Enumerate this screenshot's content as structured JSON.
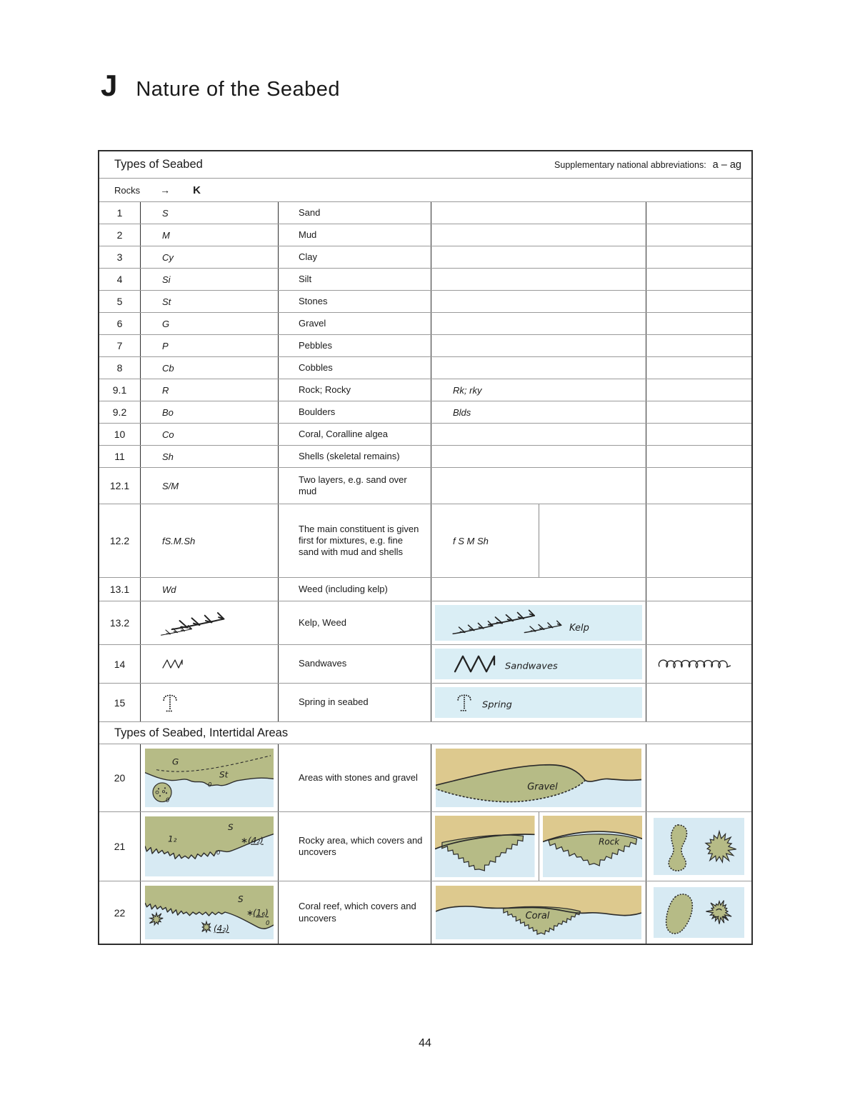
{
  "page": {
    "section_letter": "J",
    "title": "Nature of the Seabed",
    "page_number": "44"
  },
  "colors": {
    "land": "#b6bb86",
    "sand": "#ddc98e",
    "water": "#d7eaf3",
    "box": "#daeef5"
  },
  "table": {
    "header": {
      "title": "Types of Seabed",
      "supp_label": "Supplementary national abbreviations:",
      "supp_range": "a – ag"
    },
    "rocks": {
      "label": "Rocks",
      "arrow": "→",
      "ref": "K"
    },
    "rows": [
      {
        "num": "1",
        "abbr": "S",
        "desc": "Sand",
        "alt": ""
      },
      {
        "num": "2",
        "abbr": "M",
        "desc": "Mud",
        "alt": ""
      },
      {
        "num": "3",
        "abbr": "Cy",
        "desc": "Clay",
        "alt": ""
      },
      {
        "num": "4",
        "abbr": "Si",
        "desc": "Silt",
        "alt": ""
      },
      {
        "num": "5",
        "abbr": "St",
        "desc": "Stones",
        "alt": ""
      },
      {
        "num": "6",
        "abbr": "G",
        "desc": "Gravel",
        "alt": ""
      },
      {
        "num": "7",
        "abbr": "P",
        "desc": "Pebbles",
        "alt": ""
      },
      {
        "num": "8",
        "abbr": "Cb",
        "desc": "Cobbles",
        "alt": ""
      },
      {
        "num": "9.1",
        "abbr": "R",
        "desc": "Rock; Rocky",
        "alt": "Rk; rky"
      },
      {
        "num": "9.2",
        "abbr": "Bo",
        "desc": "Boulders",
        "alt": "Blds"
      },
      {
        "num": "10",
        "abbr": "Co",
        "desc": "Coral, Coralline algea",
        "alt": ""
      },
      {
        "num": "11",
        "abbr": "Sh",
        "desc": "Shells (skeletal remains)",
        "alt": ""
      },
      {
        "num": "12.1",
        "abbr": "S/M",
        "desc": "Two layers, e.g. sand over mud",
        "alt": ""
      },
      {
        "num": "12.2",
        "abbr": "fS.M.Sh",
        "desc": "The main constituent is given first for mixtures, e.g. fine sand with mud and shells",
        "alt": "f S M Sh"
      },
      {
        "num": "13.1",
        "abbr": "Wd",
        "desc": "Weed (including kelp)",
        "alt": ""
      }
    ],
    "kelp_row": {
      "num": "13.2",
      "desc": "Kelp, Weed",
      "box_label": "Kelp"
    },
    "sandwave_row": {
      "num": "14",
      "desc": "Sandwaves",
      "box_label": "Sandwaves"
    },
    "spring_row": {
      "num": "15",
      "desc": "Spring in seabed",
      "box_label": "Spring"
    },
    "intertidal": {
      "header": "Types of Seabed, Intertidal Areas",
      "row20": {
        "num": "20",
        "desc": "Areas with stones and gravel",
        "label_g": "G",
        "label_st": "St",
        "label_gravel": "Gravel",
        "label_zero": "0"
      },
      "row21": {
        "num": "21",
        "desc": "Rocky area, which covers and uncovers",
        "label_sounding": "1₂",
        "label_s": "S",
        "label_star": "∗",
        "label_drying": "(4₂)",
        "label_zero": "0",
        "label_rock": "Rock"
      },
      "row22": {
        "num": "22",
        "desc": "Coral reef, which covers and uncovers",
        "label_s": "S",
        "label_star": "∗",
        "label_drying1": "(1₆)",
        "label_drying2": "(4₂)",
        "label_zero": "0",
        "label_coral": "Coral"
      }
    }
  }
}
